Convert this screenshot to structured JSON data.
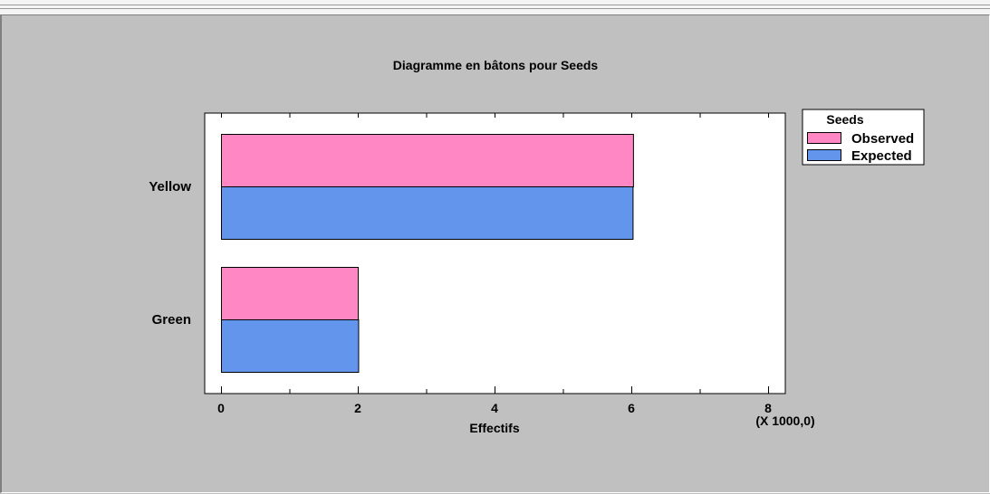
{
  "chart_data": {
    "type": "bar",
    "orientation": "horizontal",
    "title": "Diagramme en bâtons pour Seeds",
    "categories": [
      "Yellow",
      "Green"
    ],
    "series": [
      {
        "name": "Observed",
        "values": [
          6025,
          2000
        ],
        "color": "#ff88c4"
      },
      {
        "name": "Expected",
        "values": [
          6019,
          2006
        ],
        "color": "#6495ed"
      }
    ],
    "xlabel": "Effectifs",
    "x_multiplier_label": "(X 1000,0)",
    "xlim": [
      0,
      8000
    ],
    "x_ticks": [
      0,
      2000,
      4000,
      6000,
      8000
    ],
    "x_tick_labels": [
      "0",
      "2",
      "4",
      "6",
      "8"
    ],
    "legend": {
      "title": "Seeds",
      "position": "right"
    },
    "grid": false
  }
}
